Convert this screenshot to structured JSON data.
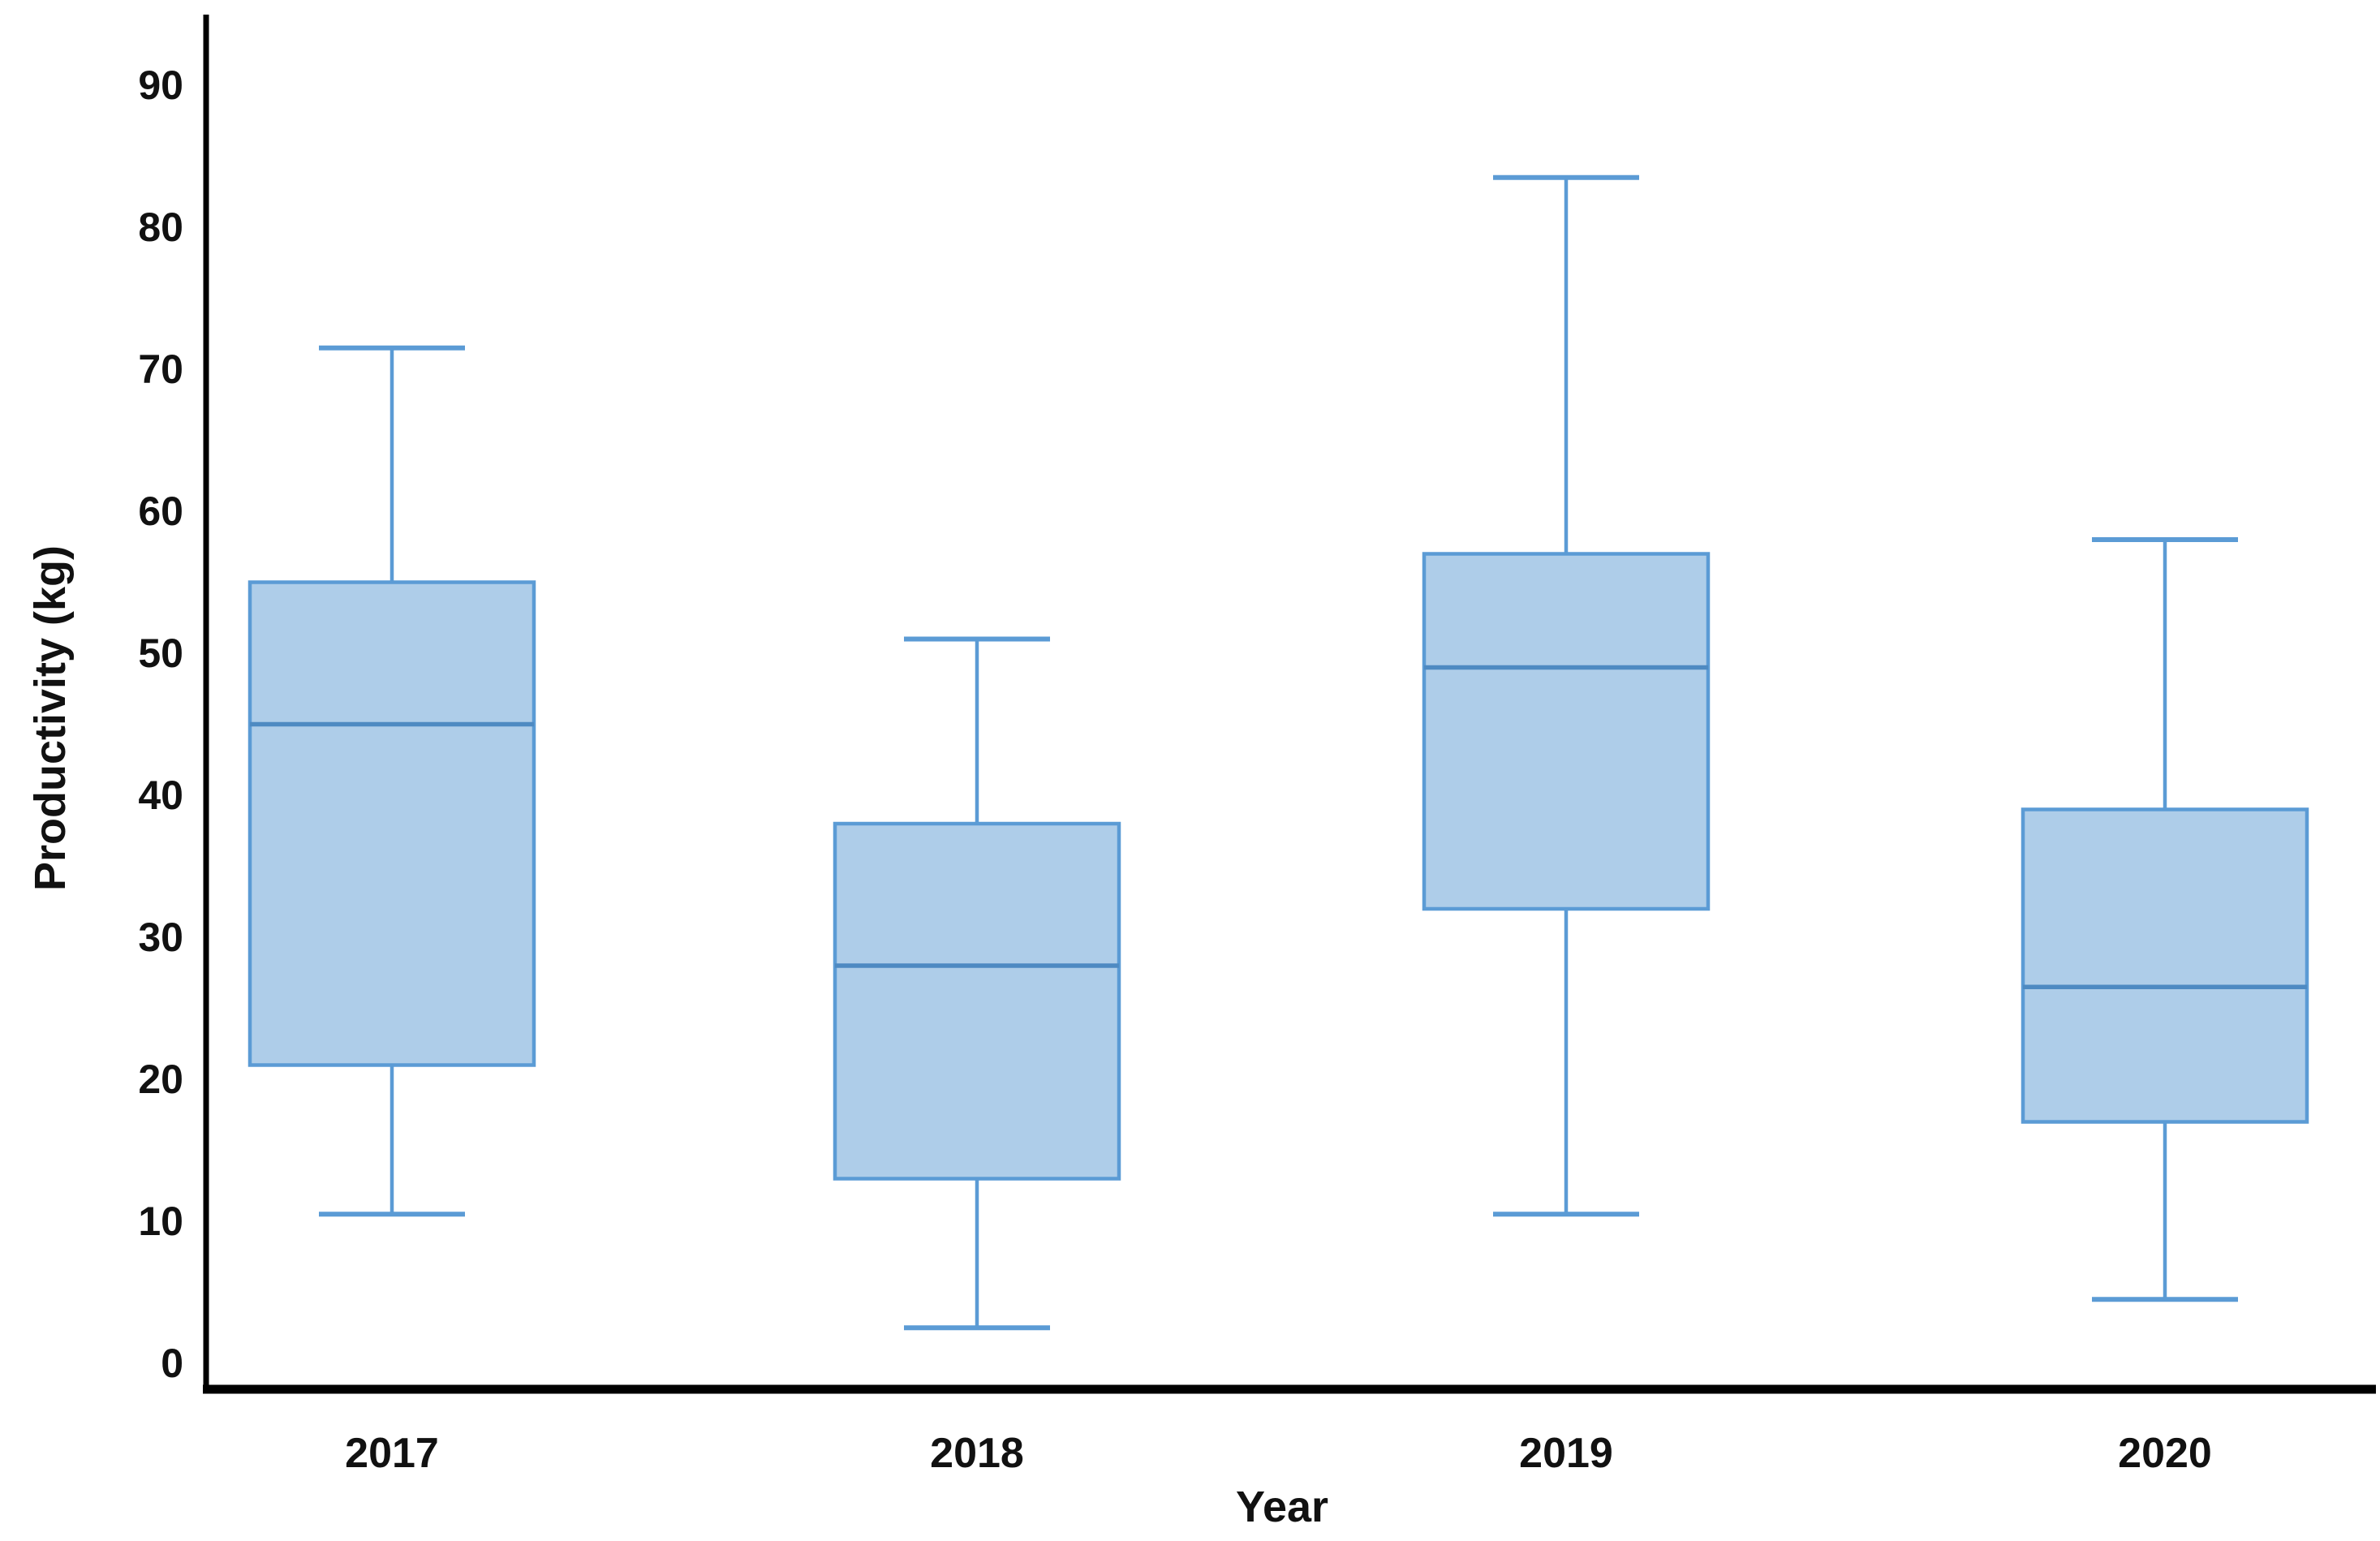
{
  "chart_data": {
    "type": "box",
    "title": "",
    "xlabel": "Year",
    "ylabel": "Productivity (kg)",
    "categories": [
      "2017",
      "2018",
      "2019",
      "2020"
    ],
    "series": [
      {
        "name": "2017",
        "min": 10.5,
        "q1": 21,
        "median": 45,
        "q3": 55,
        "max": 71.5
      },
      {
        "name": "2018",
        "min": 2.5,
        "q1": 13,
        "median": 28,
        "q3": 38,
        "max": 51
      },
      {
        "name": "2019",
        "min": 10.5,
        "q1": 32,
        "median": 49,
        "q3": 57,
        "max": 83.5
      },
      {
        "name": "2020",
        "min": 4.5,
        "q1": 17,
        "median": 26.5,
        "q3": 39,
        "max": 58
      }
    ],
    "y_ticks": [
      90,
      80,
      70,
      60,
      50,
      40,
      30,
      20,
      10,
      0
    ],
    "ylim": [
      0,
      90
    ],
    "grid": false,
    "legend": false,
    "colors": {
      "box_fill": "#AECDE9",
      "box_stroke": "#5B9BD5",
      "median": "#4E8AC2",
      "whisker": "#5B9BD5",
      "axis": "#000000",
      "text": "#111111"
    }
  }
}
